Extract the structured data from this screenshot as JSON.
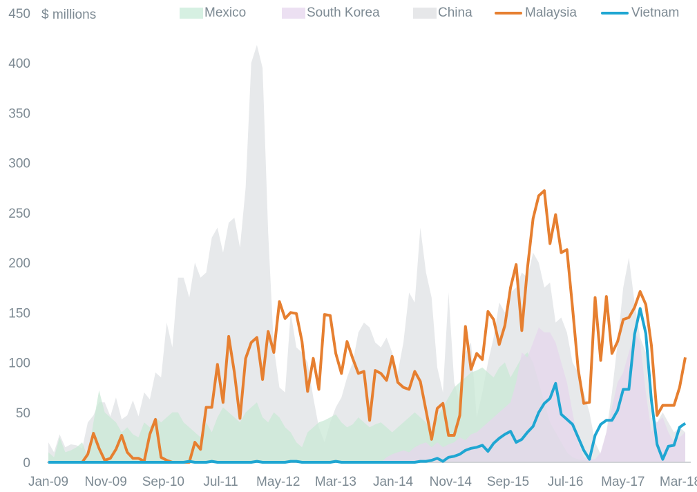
{
  "chart_data": {
    "type": "area",
    "ylabel": "$ millions",
    "ylim": [
      0,
      450
    ],
    "yticks": [
      0,
      50,
      100,
      150,
      200,
      250,
      300,
      350,
      400,
      450
    ],
    "xtick_labels": [
      "Jan-09",
      "Nov-09",
      "Sep-10",
      "Jul-11",
      "May-12",
      "Mar-13",
      "Jan-14",
      "Nov-14",
      "Sep-15",
      "Jul-16",
      "May-17",
      "Mar-18"
    ],
    "xtick_index": [
      0,
      10,
      20,
      30,
      40,
      50,
      60,
      70,
      80,
      90,
      100,
      110
    ],
    "grid": false,
    "legend_placement": "top",
    "series": [
      {
        "name": "China",
        "kind": "area",
        "color": "#dfe1e4",
        "values": [
          20,
          10,
          28,
          15,
          18,
          17,
          14,
          40,
          47,
          60,
          60,
          46,
          65,
          43,
          47,
          62,
          46,
          70,
          63,
          90,
          85,
          140,
          115,
          185,
          185,
          165,
          200,
          185,
          190,
          225,
          235,
          210,
          240,
          245,
          215,
          275,
          400,
          418,
          395,
          230,
          115,
          75,
          70,
          150,
          115,
          110,
          100,
          65,
          35,
          20,
          40,
          55,
          65,
          85,
          100,
          130,
          140,
          135,
          120,
          115,
          125,
          110,
          90,
          120,
          170,
          160,
          235,
          190,
          165,
          95,
          70,
          170,
          80,
          60,
          110,
          120,
          45,
          70,
          100,
          125,
          160,
          150,
          170,
          175,
          190,
          185,
          210,
          200,
          175,
          180,
          140,
          145,
          130,
          100,
          90,
          70,
          50,
          20,
          8,
          30,
          70,
          120,
          175,
          205,
          160,
          125,
          110,
          45,
          40,
          50,
          40,
          30,
          35,
          30
        ]
      },
      {
        "name": "Mexico",
        "kind": "area",
        "color": "#c9e8d6",
        "values": [
          10,
          5,
          25,
          10,
          12,
          15,
          20,
          5,
          40,
          72,
          50,
          45,
          40,
          30,
          35,
          28,
          25,
          40,
          35,
          45,
          40,
          45,
          50,
          50,
          40,
          35,
          30,
          25,
          40,
          30,
          45,
          55,
          50,
          45,
          40,
          50,
          55,
          60,
          45,
          40,
          50,
          45,
          35,
          30,
          20,
          15,
          30,
          35,
          40,
          42,
          45,
          48,
          40,
          35,
          38,
          45,
          40,
          35,
          38,
          40,
          35,
          30,
          35,
          40,
          45,
          50,
          45,
          40,
          30,
          45,
          55,
          65,
          75,
          80,
          85,
          90,
          92,
          95,
          90,
          85,
          95,
          100,
          85,
          95,
          105,
          110,
          100,
          80,
          60,
          40,
          30,
          20,
          10,
          5,
          3,
          2,
          1,
          0,
          0,
          0,
          0,
          0,
          0,
          0,
          0,
          0,
          0,
          0,
          0,
          0,
          0,
          0,
          0,
          0
        ]
      },
      {
        "name": "South Korea",
        "kind": "area",
        "color": "#e6d6ec",
        "values": [
          0,
          0,
          0,
          0,
          0,
          0,
          0,
          0,
          0,
          0,
          0,
          0,
          0,
          0,
          0,
          0,
          0,
          0,
          0,
          0,
          0,
          0,
          0,
          0,
          0,
          0,
          0,
          0,
          0,
          0,
          0,
          0,
          0,
          0,
          0,
          0,
          0,
          0,
          0,
          0,
          0,
          0,
          0,
          0,
          0,
          0,
          0,
          0,
          0,
          0,
          0,
          0,
          0,
          0,
          0,
          0,
          0,
          0,
          0,
          0,
          5,
          8,
          10,
          12,
          10,
          15,
          18,
          20,
          15,
          20,
          15,
          18,
          20,
          25,
          22,
          28,
          30,
          35,
          40,
          45,
          50,
          55,
          60,
          80,
          110,
          105,
          120,
          135,
          130,
          130,
          120,
          100,
          80,
          50,
          20,
          5,
          3,
          3,
          10,
          30,
          55,
          80,
          90,
          110,
          130,
          120,
          70,
          30,
          40,
          45,
          30,
          20,
          25,
          30
        ]
      },
      {
        "name": "Malaysia",
        "kind": "line",
        "color": "#e67f30",
        "values": [
          0,
          0,
          0,
          0,
          0,
          0,
          0,
          8,
          29,
          14,
          2,
          4,
          13,
          27,
          10,
          4,
          4,
          1,
          28,
          43,
          5,
          2,
          0,
          0,
          0,
          0,
          20,
          13,
          55,
          55,
          98,
          60,
          126,
          90,
          44,
          104,
          120,
          125,
          83,
          131,
          110,
          161,
          144,
          150,
          149,
          121,
          71,
          104,
          73,
          148,
          147,
          109,
          89,
          121,
          104,
          89,
          91,
          42,
          92,
          89,
          82,
          106,
          80,
          75,
          73,
          91,
          81,
          52,
          23,
          54,
          59,
          27,
          27,
          47,
          136,
          93,
          109,
          103,
          151,
          143,
          118,
          137,
          175,
          198,
          132,
          194,
          244,
          267,
          272,
          219,
          248,
          210,
          213,
          155,
          93,
          59,
          60,
          165,
          102,
          166,
          109,
          121,
          143,
          145,
          155,
          171,
          158,
          117,
          47,
          57,
          57,
          57,
          75,
          105
        ]
      },
      {
        "name": "Vietnam",
        "kind": "line",
        "color": "#1fa6d2",
        "values": [
          0,
          0,
          0,
          0,
          0,
          0,
          0,
          0,
          0,
          0,
          0,
          0,
          0,
          0,
          0,
          0,
          0,
          0,
          0,
          0,
          0,
          0,
          0,
          0,
          0,
          1,
          0,
          0,
          0,
          1,
          0,
          0,
          0,
          0,
          0,
          0,
          0,
          1,
          0,
          0,
          0,
          0,
          0,
          1,
          1,
          0,
          0,
          0,
          0,
          0,
          0,
          1,
          0,
          0,
          0,
          0,
          0,
          0,
          0,
          0,
          0,
          0,
          0,
          0,
          0,
          0,
          1,
          1,
          2,
          4,
          1,
          5,
          6,
          8,
          12,
          14,
          15,
          17,
          11,
          19,
          24,
          28,
          31,
          20,
          23,
          30,
          36,
          50,
          59,
          64,
          79,
          48,
          43,
          38,
          25,
          12,
          3,
          27,
          38,
          42,
          42,
          52,
          73,
          73,
          128,
          154,
          129,
          62,
          18,
          3,
          16,
          17,
          35,
          39
        ]
      }
    ]
  }
}
